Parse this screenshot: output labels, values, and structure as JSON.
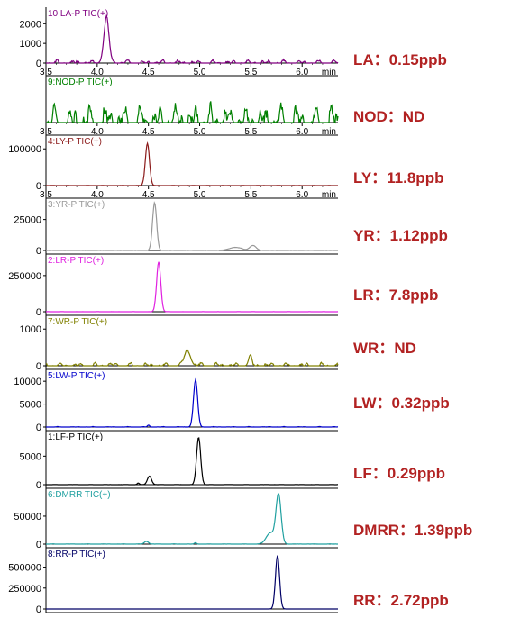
{
  "colors": {
    "annotation": "#b22222",
    "axis": "#000000"
  },
  "x_axis": {
    "tick_labels": [
      "3.5",
      "4.0",
      "4.5",
      "5.0",
      "5.5",
      "6.0"
    ],
    "unit": "min",
    "range": [
      3.5,
      6.35
    ]
  },
  "annotations": [
    {
      "compound": "LA",
      "label": "LA：0.15ppb"
    },
    {
      "compound": "NOD",
      "label": "NOD：ND"
    },
    {
      "compound": "LY",
      "label": "LY：11.8ppb"
    },
    {
      "compound": "YR",
      "label": "YR：1.12ppb"
    },
    {
      "compound": "LR",
      "label": "LR：7.8ppb"
    },
    {
      "compound": "WR",
      "label": "WR：ND"
    },
    {
      "compound": "LW",
      "label": "LW：0.32ppb"
    },
    {
      "compound": "LF",
      "label": "LF：0.29ppb"
    },
    {
      "compound": "DMRR",
      "label": "DMRR：1.39ppb"
    },
    {
      "compound": "RR",
      "label": "RR：2.72ppb"
    }
  ],
  "chart_data": [
    {
      "type": "line",
      "trace_label": "10:LA-P TIC(+)",
      "color": "#800080",
      "y_ticks": [
        "2000",
        "1000",
        "0"
      ],
      "ylim": [
        0,
        2700
      ],
      "peaks": [
        {
          "rt": 4.09,
          "height": 2250,
          "width": 0.025
        }
      ],
      "noise": 180,
      "show_x_axis": true
    },
    {
      "type": "line",
      "trace_label": "9:NOD-P TIC(+)",
      "color": "#008000",
      "y_ticks": [],
      "ylim": [
        0,
        1
      ],
      "peaks": [],
      "noise": 0.45,
      "show_x_axis": true
    },
    {
      "type": "line",
      "trace_label": "4:LY-P TIC(+)",
      "color": "#8b1a1a",
      "y_ticks": [
        "100000",
        "0"
      ],
      "ylim": [
        0,
        130000
      ],
      "peaks": [
        {
          "rt": 4.49,
          "height": 115000,
          "width": 0.02
        }
      ],
      "noise": 300,
      "show_x_axis": true
    },
    {
      "type": "line",
      "trace_label": "3:YR-P TIC(+)",
      "color": "#999999",
      "y_ticks": [
        "25000",
        "0"
      ],
      "ylim": [
        0,
        40000
      ],
      "peaks": [
        {
          "rt": 4.56,
          "height": 38500,
          "width": 0.02
        },
        {
          "rt": 5.35,
          "height": 2500,
          "width": 0.06
        },
        {
          "rt": 5.52,
          "height": 4000,
          "width": 0.03
        }
      ],
      "noise": 200,
      "show_x_axis": false
    },
    {
      "type": "line",
      "trace_label": "2:LR-P TIC(+)",
      "color": "#e020e0",
      "y_ticks": [
        "250000",
        "0"
      ],
      "ylim": [
        0,
        380000
      ],
      "peaks": [
        {
          "rt": 4.6,
          "height": 345000,
          "width": 0.02
        }
      ],
      "noise": 600,
      "show_x_axis": false
    },
    {
      "type": "line",
      "trace_label": "7:WR-P TIC(+)",
      "color": "#808000",
      "y_ticks": [
        "1000",
        "0"
      ],
      "ylim": [
        0,
        1300
      ],
      "peaks": [
        {
          "rt": 4.88,
          "height": 400,
          "width": 0.03
        },
        {
          "rt": 5.49,
          "height": 250,
          "width": 0.015
        }
      ],
      "noise": 90,
      "show_x_axis": false
    },
    {
      "type": "line",
      "trace_label": "5:LW-P TIC(+)",
      "color": "#0000cc",
      "y_ticks": [
        "10000",
        "5000",
        "0"
      ],
      "ylim": [
        0,
        12000
      ],
      "peaks": [
        {
          "rt": 4.96,
          "height": 10300,
          "width": 0.02
        },
        {
          "rt": 4.5,
          "height": 400,
          "width": 0.01
        }
      ],
      "noise": 100,
      "show_x_axis": false
    },
    {
      "type": "line",
      "trace_label": "1:LF-P TIC(+)",
      "color": "#000000",
      "y_ticks": [
        "5000",
        "0"
      ],
      "ylim": [
        0,
        9000
      ],
      "peaks": [
        {
          "rt": 4.99,
          "height": 8300,
          "width": 0.02
        },
        {
          "rt": 4.51,
          "height": 1500,
          "width": 0.02
        },
        {
          "rt": 4.4,
          "height": 300,
          "width": 0.01
        }
      ],
      "noise": 40,
      "show_x_axis": false
    },
    {
      "type": "line",
      "trace_label": "6:DMRR TIC(+)",
      "color": "#20a0a0",
      "y_ticks": [
        "50000",
        "0"
      ],
      "ylim": [
        0,
        95000
      ],
      "peaks": [
        {
          "rt": 5.77,
          "height": 88000,
          "width": 0.025
        },
        {
          "rt": 5.69,
          "height": 20000,
          "width": 0.04
        },
        {
          "rt": 4.48,
          "height": 5000,
          "width": 0.02
        },
        {
          "rt": 4.96,
          "height": 2500,
          "width": 0.01
        }
      ],
      "noise": 500,
      "show_x_axis": false
    },
    {
      "type": "line",
      "trace_label": "8:RR-P TIC(+)",
      "color": "#000066",
      "y_ticks": [
        "500000",
        "250000",
        "0"
      ],
      "ylim": [
        0,
        700000
      ],
      "peaks": [
        {
          "rt": 5.76,
          "height": 640000,
          "width": 0.02
        }
      ],
      "noise": 0,
      "show_x_axis": false
    }
  ]
}
